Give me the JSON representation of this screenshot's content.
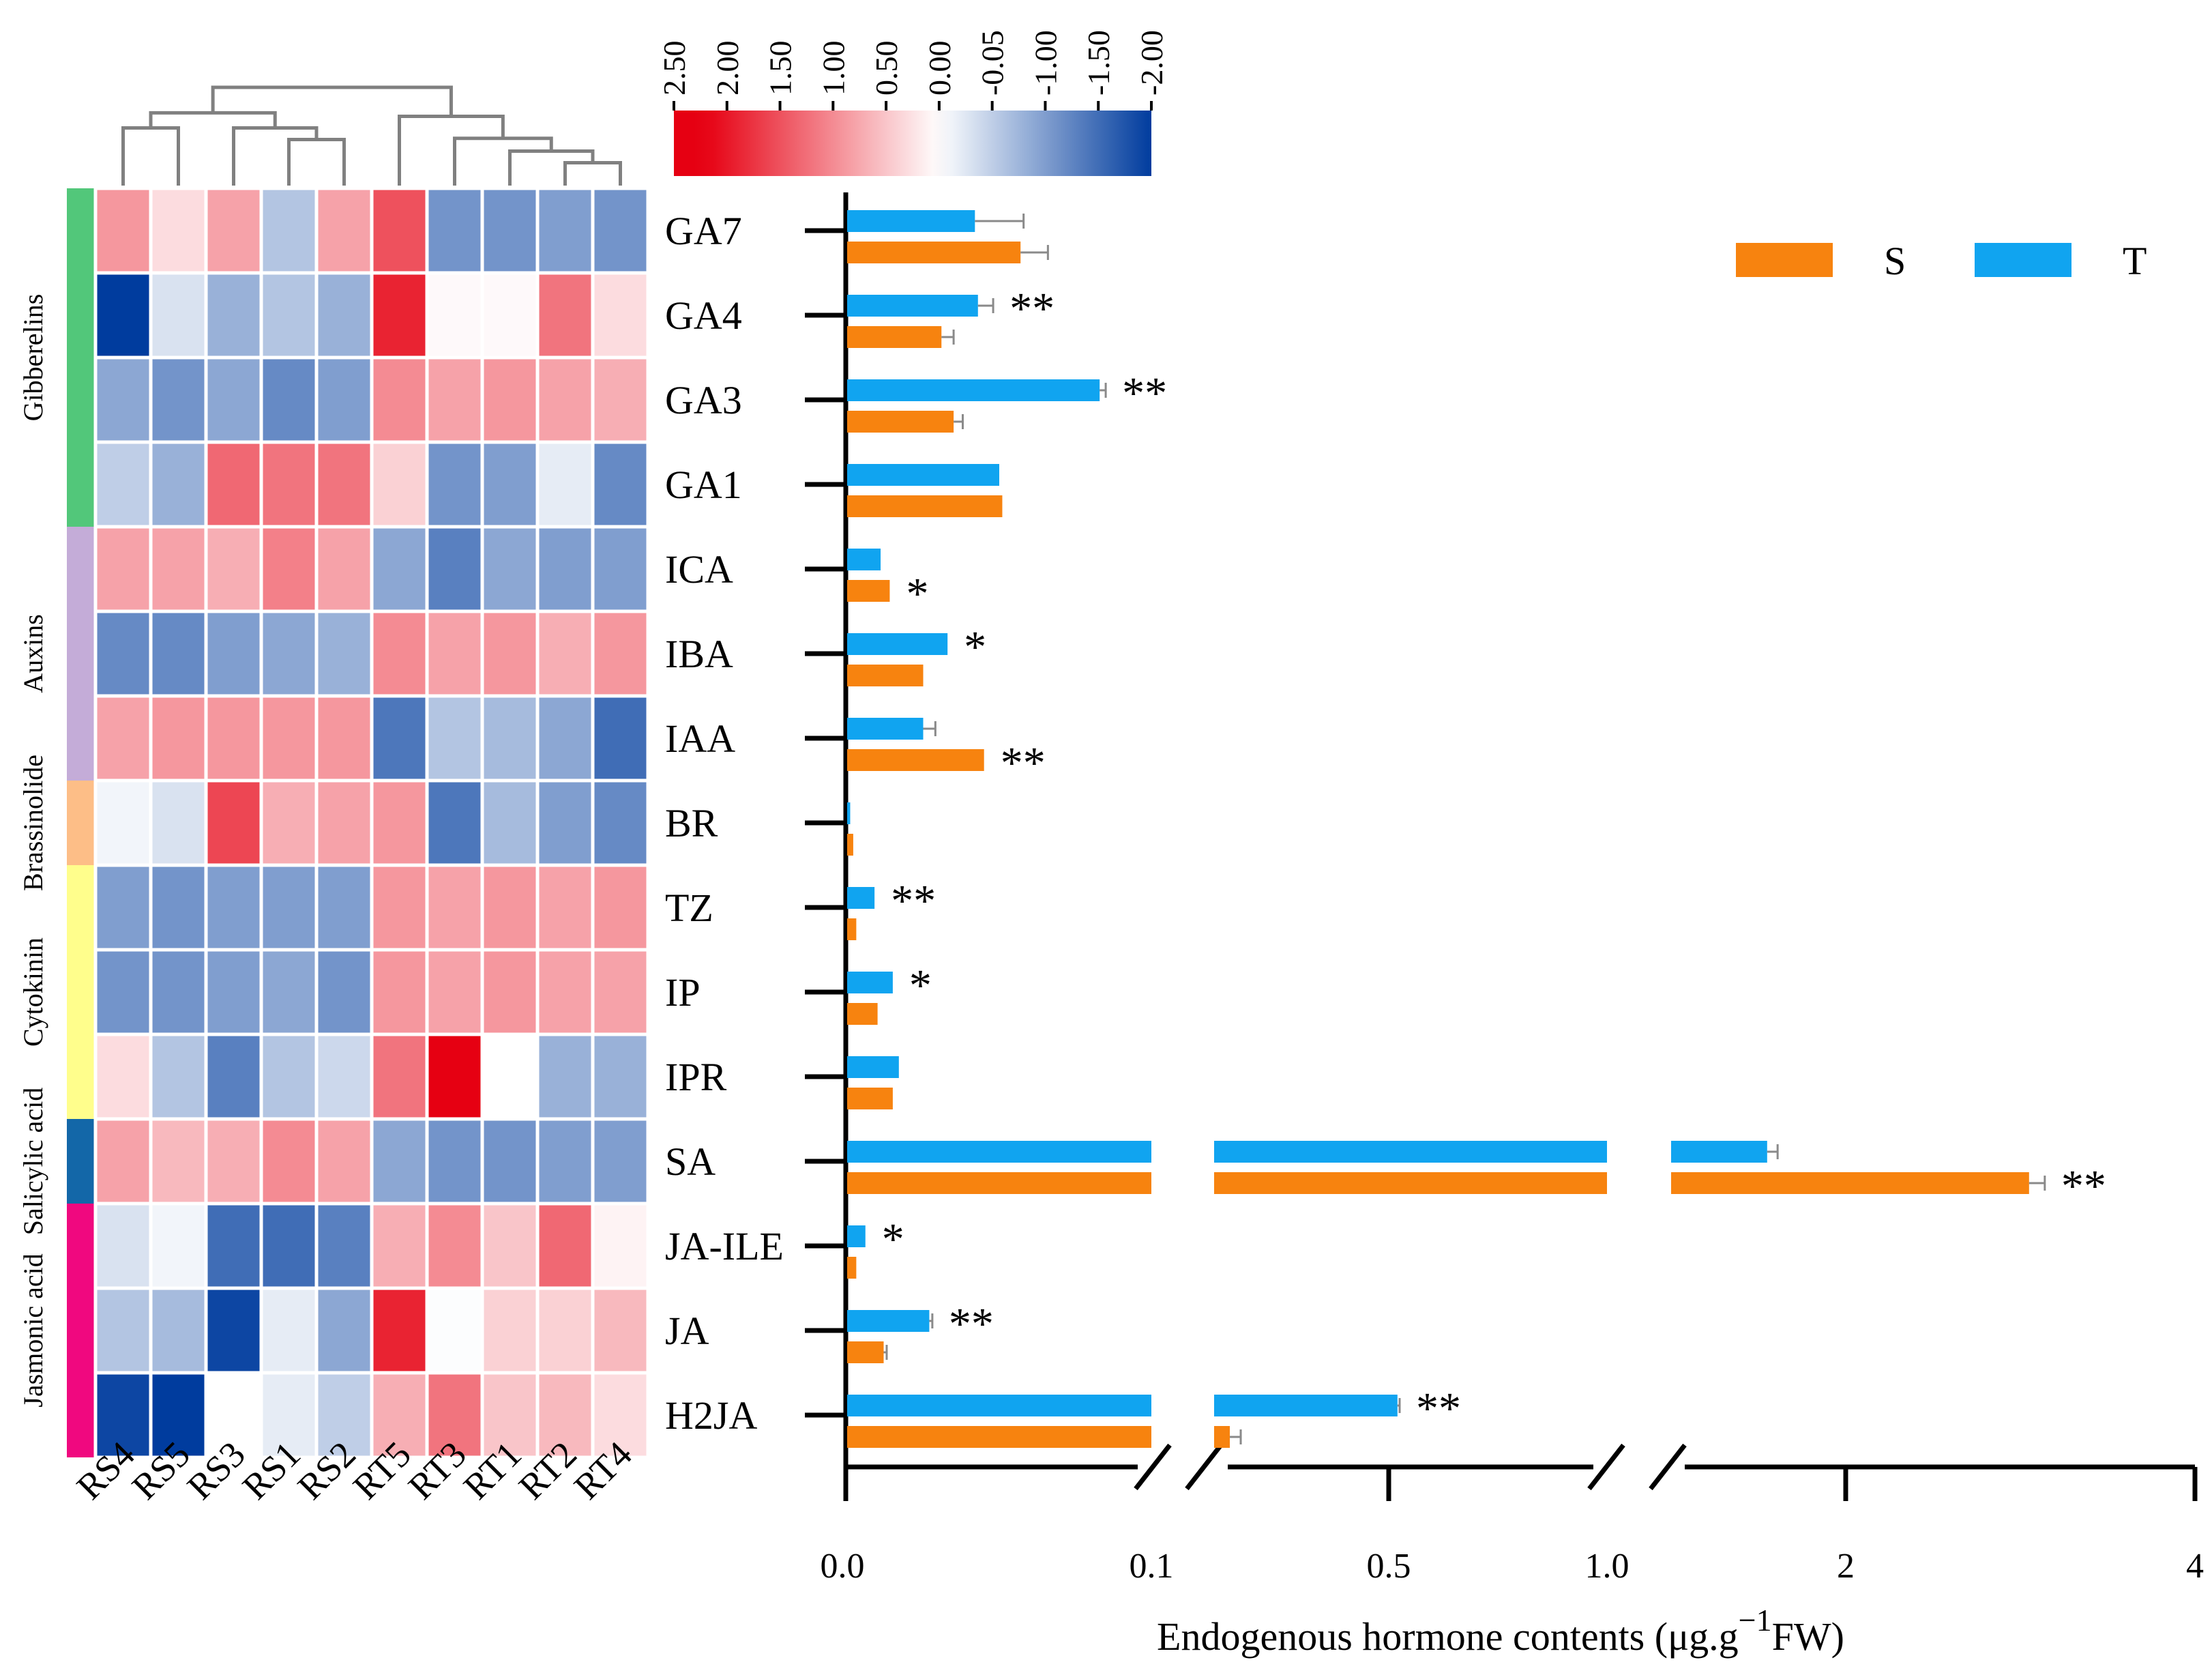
{
  "chart_data": [
    {
      "type": "heatmap",
      "columns": [
        "RS4",
        "RS5",
        "RS3",
        "RS1",
        "RS2",
        "RT5",
        "RT3",
        "RT1",
        "RT2",
        "RT4"
      ],
      "rows": [
        "GA7",
        "GA4",
        "GA3",
        "GA1",
        "ICA",
        "IBA",
        "IAA",
        "BR",
        "TZ",
        "IP",
        "IPR",
        "SA",
        "JA-ILE",
        "JA",
        "H2JA"
      ],
      "groups": [
        {
          "name": "Gibberelins",
          "start": 0,
          "end": 3,
          "color": "#52c77a"
        },
        {
          "name": "Auxins",
          "start": 4,
          "end": 6,
          "color": "#c4acd8"
        },
        {
          "name": "Brassinolide",
          "start": 7,
          "end": 7,
          "color": "#fdbe87"
        },
        {
          "name": "Cytokinin",
          "start": 8,
          "end": 10,
          "color": "#fffe8c"
        },
        {
          "name": "Salicylic acid",
          "start": 11,
          "end": 11,
          "color": "#1367a8"
        },
        {
          "name": "Jasmonic acid",
          "start": 12,
          "end": 14,
          "color": "#f0087f"
        }
      ],
      "values": [
        [
          0.9,
          0.3,
          0.8,
          -0.6,
          0.8,
          1.5,
          -1.1,
          -1.1,
          -1.0,
          -1.1
        ],
        [
          -2.0,
          -0.3,
          -0.8,
          -0.6,
          -0.8,
          1.9,
          0.05,
          0.05,
          1.2,
          0.3
        ],
        [
          -0.9,
          -1.1,
          -0.9,
          -1.2,
          -1.0,
          1.0,
          0.8,
          0.9,
          0.8,
          0.7
        ],
        [
          -0.5,
          -0.8,
          1.3,
          1.2,
          1.2,
          0.4,
          -1.1,
          -1.0,
          -0.2,
          -1.2
        ],
        [
          0.8,
          0.8,
          0.7,
          1.1,
          0.8,
          -0.9,
          -1.3,
          -0.9,
          -1.0,
          -1.0
        ],
        [
          -1.2,
          -1.2,
          -1.0,
          -0.9,
          -0.8,
          1.0,
          0.8,
          0.9,
          0.7,
          0.9
        ],
        [
          0.8,
          0.9,
          0.9,
          0.9,
          0.9,
          -1.4,
          -0.6,
          -0.7,
          -0.9,
          -1.5
        ],
        [
          -0.1,
          -0.3,
          1.6,
          0.7,
          0.8,
          0.9,
          -1.4,
          -0.7,
          -1.0,
          -1.2
        ],
        [
          -1.0,
          -1.1,
          -1.0,
          -1.0,
          -1.0,
          0.9,
          0.8,
          0.9,
          0.8,
          0.9
        ],
        [
          -1.1,
          -1.1,
          -1.0,
          -0.9,
          -1.1,
          0.9,
          0.8,
          0.9,
          0.8,
          0.8
        ],
        [
          0.3,
          -0.6,
          -1.3,
          -0.6,
          -0.4,
          1.2,
          2.2,
          0.0,
          -0.8,
          -0.8
        ],
        [
          0.8,
          0.6,
          0.7,
          1.0,
          0.8,
          -0.9,
          -1.1,
          -1.1,
          -1.0,
          -1.0
        ],
        [
          -0.3,
          -0.1,
          -1.5,
          -1.5,
          -1.3,
          0.7,
          1.0,
          0.5,
          1.3,
          0.1
        ],
        [
          -0.6,
          -0.7,
          -1.9,
          -0.2,
          -0.9,
          1.9,
          -0.02,
          0.4,
          0.4,
          0.6
        ],
        [
          -1.9,
          -2.0,
          0.0,
          -0.2,
          -0.5,
          0.7,
          1.2,
          0.5,
          0.6,
          0.3
        ]
      ],
      "colorbar": {
        "ticks": [
          "2.50",
          "2.00",
          "1.50",
          "1.00",
          "0.50",
          "0.00",
          "-0.05",
          "-1.00",
          "-1.50",
          "-2.00"
        ],
        "range": [
          2.5,
          -2.0
        ],
        "colors": {
          "high": "#e60012",
          "mid": "#ffffff",
          "low": "#003c9e"
        }
      },
      "dendrogram": {
        "leaf_order": [
          "RS4",
          "RS5",
          "RS3",
          "RS1",
          "RS2",
          "RT5",
          "RT3",
          "RT1",
          "RT2",
          "RT4"
        ],
        "merges": [
          [
            8,
            9,
            0.5
          ],
          [
            7,
            10,
            1.5
          ],
          [
            3,
            4,
            2.5
          ],
          [
            6,
            11,
            2.6
          ],
          [
            0,
            1,
            3.5
          ],
          [
            2,
            12,
            3.5
          ],
          [
            5,
            13,
            4.5
          ],
          [
            14,
            15,
            4.8
          ],
          [
            17,
            16,
            7.0
          ]
        ]
      }
    },
    {
      "type": "bar",
      "orientation": "horizontal",
      "categories": [
        "GA7",
        "GA4",
        "GA3",
        "GA1",
        "ICA",
        "IBA",
        "IAA",
        "BR",
        "TZ",
        "IP",
        "IPR",
        "SA",
        "JA-ILE",
        "JA",
        "H2JA"
      ],
      "series": [
        {
          "name": "T",
          "color": "#10a4f0",
          "values": [
            0.042,
            0.043,
            0.083,
            0.05,
            0.011,
            0.033,
            0.025,
            0.001,
            0.009,
            0.015,
            0.017,
            1.55,
            0.006,
            0.027,
            0.52
          ],
          "errors": [
            0.016,
            0.005,
            0.002,
            0.0,
            0.0,
            0.0,
            0.004,
            0.0,
            0.0,
            0.0,
            0.0,
            0.06,
            0.0,
            0.001,
            0.005
          ]
        },
        {
          "name": "S",
          "color": "#f7830f",
          "values": [
            0.057,
            0.031,
            0.035,
            0.051,
            0.014,
            0.025,
            0.045,
            0.002,
            0.003,
            0.01,
            0.015,
            3.05,
            0.003,
            0.012,
            0.136
          ],
          "errors": [
            0.009,
            0.004,
            0.003,
            0.0,
            0.0,
            0.0,
            0.0,
            0.0,
            0.0,
            0.0,
            0.0,
            0.09,
            0.0,
            0.001,
            0.025
          ]
        }
      ],
      "significance": [
        {
          "category": "GA4",
          "series": "T",
          "label": "**"
        },
        {
          "category": "GA3",
          "series": "T",
          "label": "**"
        },
        {
          "category": "ICA",
          "series": "S",
          "label": "*"
        },
        {
          "category": "IBA",
          "series": "T",
          "label": "*"
        },
        {
          "category": "IAA",
          "series": "S",
          "label": "**"
        },
        {
          "category": "TZ",
          "series": "T",
          "label": "**"
        },
        {
          "category": "IP",
          "series": "T",
          "label": "*"
        },
        {
          "category": "SA",
          "series": "S",
          "label": "**"
        },
        {
          "category": "JA-ILE",
          "series": "T",
          "label": "*"
        },
        {
          "category": "JA",
          "series": "T",
          "label": "**"
        },
        {
          "category": "H2JA",
          "series": "T",
          "label": "**"
        }
      ],
      "x_segments": [
        {
          "range": [
            0.0,
            0.1
          ],
          "ticks": [
            0.0,
            0.1
          ]
        },
        {
          "range": [
            0.1,
            1.0
          ],
          "ticks": [
            0.5,
            1.0
          ]
        },
        {
          "range": [
            1.0,
            4.0
          ],
          "ticks": [
            2,
            4
          ]
        }
      ],
      "x_tick_labels": [
        "0.0",
        "0.1",
        "0.5",
        "1.0",
        "2",
        "4"
      ],
      "xlabel_main": "Endogenous hormone contents (μg.g",
      "xlabel_sup": "−1",
      "xlabel_tail": "FW)",
      "legend": {
        "position": "top-right",
        "entries": [
          "S",
          "T"
        ]
      }
    }
  ]
}
